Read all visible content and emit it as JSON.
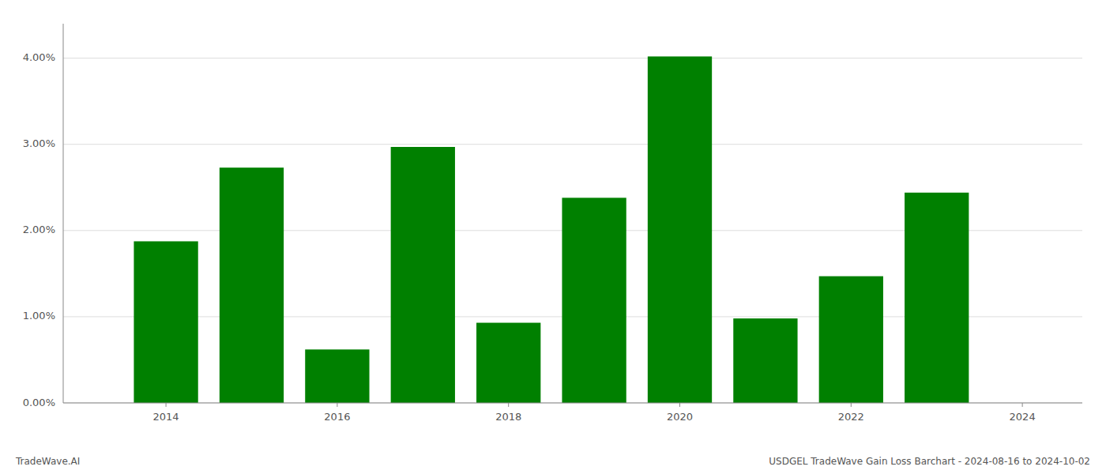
{
  "chart_data": {
    "type": "bar",
    "x": [
      2014,
      2015,
      2016,
      2017,
      2018,
      2019,
      2020,
      2021,
      2022,
      2023
    ],
    "values": [
      0.01875,
      0.0273,
      0.0062,
      0.0297,
      0.0093,
      0.0238,
      0.0402,
      0.0098,
      0.0147,
      0.0244
    ],
    "color": "#008000",
    "xlim": [
      2012.8,
      2024.7
    ],
    "xticks": [
      2014,
      2016,
      2018,
      2020,
      2022,
      2024
    ],
    "ylim": [
      0,
      0.044
    ],
    "yticks": [
      {
        "value": 0.0,
        "label": "0.00%"
      },
      {
        "value": 0.01,
        "label": "1.00%"
      },
      {
        "value": 0.02,
        "label": "2.00%"
      },
      {
        "value": 0.03,
        "label": "3.00%"
      },
      {
        "value": 0.04,
        "label": "4.00%"
      }
    ],
    "grid": true,
    "annotations": [
      "TradeWave.AI",
      "USDGEL TradeWave Gain Loss Barchart - 2024-08-16 to 2024-10-02"
    ]
  }
}
